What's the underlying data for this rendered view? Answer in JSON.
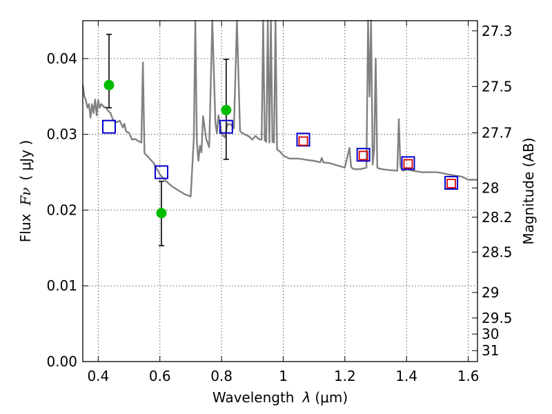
{
  "chart_data": {
    "type": "scatter",
    "title": "",
    "xlabel_text": "Wavelength",
    "xlabel_symbol": "λ",
    "xlabel_unit": "(μm)",
    "ylabel_text": "Flux",
    "ylabel_symbol": "Fν",
    "ylabel_unit": "( μJy )",
    "ylabel_right": "Magnitude (AB)",
    "xlim": [
      0.35,
      1.63
    ],
    "ylim": [
      0.0,
      0.045
    ],
    "grid": true,
    "x_ticks": [
      {
        "value": 0.4,
        "label": "0.4"
      },
      {
        "value": 0.6,
        "label": "0.6"
      },
      {
        "value": 0.8,
        "label": "0.8"
      },
      {
        "value": 1.0,
        "label": "1"
      },
      {
        "value": 1.2,
        "label": "1.2"
      },
      {
        "value": 1.4,
        "label": "1.4"
      },
      {
        "value": 1.6,
        "label": "1.6"
      }
    ],
    "y_ticks": [
      {
        "value": 0.0,
        "label": "0.00"
      },
      {
        "value": 0.01,
        "label": "0.01"
      },
      {
        "value": 0.02,
        "label": "0.02"
      },
      {
        "value": 0.03,
        "label": "0.03"
      },
      {
        "value": 0.04,
        "label": "0.04"
      }
    ],
    "mag_ticks": [
      {
        "value": 27.3,
        "label": "27.3"
      },
      {
        "value": 27.5,
        "label": "27.5"
      },
      {
        "value": 27.7,
        "label": "27.7"
      },
      {
        "value": 28.0,
        "label": "28"
      },
      {
        "value": 28.2,
        "label": "28.2"
      },
      {
        "value": 28.5,
        "label": "28.5"
      },
      {
        "value": 29.0,
        "label": "29"
      },
      {
        "value": 29.5,
        "label": "29.5"
      },
      {
        "value": 30.0,
        "label": "30"
      },
      {
        "value": 31.0,
        "label": "31"
      }
    ],
    "series": [
      {
        "kind": "line",
        "color": "#808080",
        "x": [
          0.35,
          0.355,
          0.36,
          0.365,
          0.37,
          0.375,
          0.38,
          0.385,
          0.39,
          0.395,
          0.4,
          0.405,
          0.41,
          0.415,
          0.42,
          0.425,
          0.43,
          0.435,
          0.44,
          0.445,
          0.45,
          0.46,
          0.47,
          0.48,
          0.485,
          0.49,
          0.5,
          0.51,
          0.52,
          0.53,
          0.535,
          0.54,
          0.545,
          0.55,
          0.56,
          0.58,
          0.6,
          0.62,
          0.64,
          0.66,
          0.68,
          0.7,
          0.71,
          0.715,
          0.72,
          0.725,
          0.73,
          0.735,
          0.74,
          0.75,
          0.76,
          0.77,
          0.78,
          0.785,
          0.79,
          0.8,
          0.81,
          0.82,
          0.83,
          0.84,
          0.85,
          0.86,
          0.87,
          0.88,
          0.89,
          0.9,
          0.91,
          0.92,
          0.93,
          0.935,
          0.94,
          0.945,
          0.95,
          0.955,
          0.96,
          0.965,
          0.97,
          0.975,
          0.98,
          0.99,
          1.0,
          1.02,
          1.05,
          1.08,
          1.1,
          1.12,
          1.125,
          1.13,
          1.15,
          1.2,
          1.215,
          1.22,
          1.225,
          1.23,
          1.25,
          1.27,
          1.275,
          1.28,
          1.285,
          1.29,
          1.295,
          1.3,
          1.305,
          1.31,
          1.32,
          1.34,
          1.37,
          1.375,
          1.38,
          1.385,
          1.39,
          1.4,
          1.42,
          1.45,
          1.5,
          1.55,
          1.58,
          1.6,
          1.63
        ],
        "y": [
          0.0365,
          0.035,
          0.0345,
          0.0335,
          0.034,
          0.0322,
          0.034,
          0.0328,
          0.0346,
          0.0325,
          0.0345,
          0.0335,
          0.034,
          0.0338,
          0.0335,
          0.0336,
          0.0332,
          0.033,
          0.0328,
          0.0322,
          0.0318,
          0.0316,
          0.0318,
          0.0309,
          0.0314,
          0.0304,
          0.0302,
          0.0293,
          0.0294,
          0.0291,
          0.029,
          0.0289,
          0.0395,
          0.0275,
          0.0271,
          0.0262,
          0.0247,
          0.0238,
          0.0231,
          0.0226,
          0.0221,
          0.0218,
          0.0295,
          0.045,
          0.029,
          0.0265,
          0.0285,
          0.0276,
          0.0324,
          0.0294,
          0.0283,
          0.045,
          0.0315,
          0.0301,
          0.0325,
          0.0301,
          0.0296,
          0.0314,
          0.0313,
          0.0308,
          0.045,
          0.0304,
          0.0301,
          0.0299,
          0.0297,
          0.0293,
          0.0298,
          0.0294,
          0.0293,
          0.045,
          0.0292,
          0.029,
          0.045,
          0.0289,
          0.045,
          0.029,
          0.0289,
          0.045,
          0.028,
          0.0277,
          0.0272,
          0.0268,
          0.0268,
          0.0266,
          0.0265,
          0.0263,
          0.0269,
          0.0263,
          0.0262,
          0.0256,
          0.0282,
          0.0257,
          0.0255,
          0.0254,
          0.0254,
          0.0256,
          0.045,
          0.035,
          0.045,
          0.026,
          0.028,
          0.04,
          0.0256,
          0.0255,
          0.0254,
          0.0253,
          0.0252,
          0.032,
          0.0258,
          0.0253,
          0.0252,
          0.0254,
          0.0252,
          0.025,
          0.025,
          0.0246,
          0.0244,
          0.024,
          0.024
        ]
      },
      {
        "kind": "points",
        "marker": "circle",
        "color": "#00bb00",
        "x": [
          0.435,
          0.605,
          0.815
        ],
        "y": [
          0.0365,
          0.0196,
          0.0332
        ],
        "yerr_low": [
          0.0335,
          0.0153,
          0.0267
        ],
        "yerr_high": [
          0.0432,
          0.0238,
          0.0399
        ],
        "err_color": "#000000"
      },
      {
        "kind": "points",
        "marker": "square-open",
        "color": "#0000cc",
        "x": [
          0.435,
          0.605,
          0.815,
          1.065,
          1.26,
          1.405,
          1.545
        ],
        "y": [
          0.031,
          0.025,
          0.031,
          0.0293,
          0.0273,
          0.0262,
          0.0236
        ]
      },
      {
        "kind": "points",
        "marker": "square-open-small",
        "color": "#dd0000",
        "x": [
          1.065,
          1.26,
          1.405,
          1.545
        ],
        "y": [
          0.0291,
          0.0272,
          0.0261,
          0.0235
        ]
      }
    ]
  }
}
